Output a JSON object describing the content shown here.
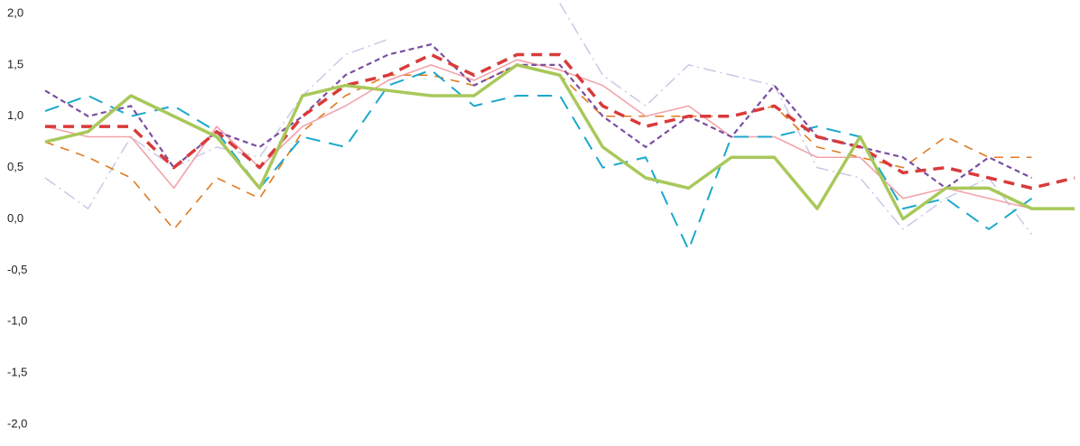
{
  "chart_data": {
    "type": "line",
    "categories": [
      null,
      null,
      null,
      null,
      null,
      null,
      null,
      null,
      null,
      null,
      null,
      null,
      null,
      null,
      null,
      null,
      null,
      null,
      null,
      null,
      null,
      null,
      null,
      null,
      null
    ],
    "ylim": [
      -2,
      2
    ],
    "yticks": [
      {
        "value": 2,
        "label": "2,0"
      },
      {
        "value": 1.5,
        "label": "1,5"
      },
      {
        "value": 1,
        "label": "1,0"
      },
      {
        "value": 0.5,
        "label": "0,5"
      },
      {
        "value": 0,
        "label": "0,0"
      },
      {
        "value": -0.5,
        "label": "-0,5"
      },
      {
        "value": -1,
        "label": "-1,0"
      },
      {
        "value": -1.5,
        "label": "-1,5"
      },
      {
        "value": -2,
        "label": "-2,0"
      }
    ],
    "series": [
      {
        "color": "#c9c9e6",
        "dash": "14 5 2 5",
        "width": 1.5,
        "values": [
          0.4,
          0.1,
          0.8,
          0.5,
          0.7,
          0.6,
          1.2,
          1.6,
          1.75,
          null,
          null,
          null,
          2.1,
          1.4,
          1.1,
          1.5,
          1.4,
          1.3,
          0.5,
          0.4,
          -0.1,
          0.2,
          0.4,
          -0.15,
          null
        ]
      },
      {
        "color": "#e07b1f",
        "dash": "10 8",
        "width": 1.6,
        "values": [
          0.75,
          0.6,
          0.4,
          -0.1,
          0.4,
          0.2,
          0.85,
          1.2,
          1.4,
          1.4,
          1.3,
          1.5,
          1.4,
          1.0,
          1.0,
          1.0,
          1.0,
          1.1,
          0.7,
          0.6,
          0.5,
          0.8,
          0.6,
          0.6,
          null
        ]
      },
      {
        "color": "#f2a3ab",
        "dash": "",
        "width": 1.6,
        "values": [
          0.9,
          0.8,
          0.8,
          0.3,
          0.9,
          0.5,
          0.9,
          1.1,
          1.35,
          1.5,
          1.35,
          1.55,
          1.45,
          1.3,
          1.0,
          1.1,
          0.8,
          0.8,
          0.6,
          0.6,
          0.2,
          0.3,
          0.2,
          0.1,
          null
        ]
      },
      {
        "color": "#1ba8cc",
        "dash": "16 10",
        "width": 2,
        "values": [
          1.05,
          1.2,
          1.0,
          1.1,
          0.85,
          0.3,
          0.8,
          0.7,
          1.3,
          1.45,
          1.1,
          1.2,
          1.2,
          0.5,
          0.6,
          -0.3,
          0.8,
          0.8,
          0.9,
          0.8,
          0.1,
          0.2,
          -0.1,
          0.2,
          null
        ]
      },
      {
        "color": "#7b4fa0",
        "dash": "6 4",
        "width": 2.2,
        "values": [
          1.25,
          1.0,
          1.1,
          0.5,
          0.85,
          0.7,
          1.0,
          1.4,
          1.6,
          1.7,
          1.3,
          1.5,
          1.5,
          1.0,
          0.7,
          1.0,
          0.8,
          1.3,
          0.8,
          0.7,
          0.6,
          0.3,
          0.6,
          0.4,
          null
        ]
      },
      {
        "color": "#d93a3a",
        "dash": "12 8",
        "width": 3.5,
        "values": [
          0.9,
          0.9,
          0.9,
          0.5,
          0.85,
          0.5,
          1.0,
          1.3,
          1.4,
          1.6,
          1.4,
          1.6,
          1.6,
          1.1,
          0.9,
          1.0,
          1.0,
          1.1,
          0.8,
          0.7,
          0.45,
          0.5,
          0.4,
          0.3,
          0.4
        ]
      },
      {
        "color": "#a8c85a",
        "dash": "",
        "width": 3.5,
        "values": [
          0.75,
          0.85,
          1.2,
          1.0,
          0.8,
          0.3,
          1.2,
          1.3,
          1.25,
          1.2,
          1.2,
          1.5,
          1.4,
          0.7,
          0.4,
          0.3,
          0.6,
          0.6,
          0.1,
          0.8,
          0.0,
          0.3,
          0.3,
          0.1,
          0.1
        ]
      }
    ]
  }
}
